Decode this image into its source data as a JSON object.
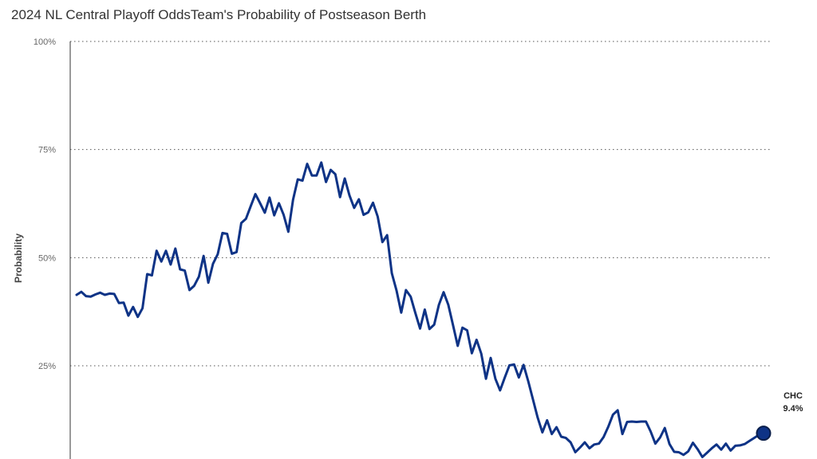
{
  "title": "2024 NL Central Playoff OddsTeam's Probability of Postseason Berth",
  "chart_data": {
    "type": "line",
    "title": "2024 NL Central Playoff OddsTeam's Probability of Postseason Berth",
    "ylabel": "Probability",
    "xlabel": "",
    "ylim": [
      0,
      100
    ],
    "y_ticks": [
      {
        "value": 25,
        "label": "25%"
      },
      {
        "value": 50,
        "label": "50%"
      },
      {
        "value": 75,
        "label": "75%"
      },
      {
        "value": 100,
        "label": "100%"
      }
    ],
    "grid": true,
    "series": [
      {
        "name": "CHC",
        "color": "#0e3386",
        "end_value_label": "9.4%",
        "values": [
          41.4,
          42.1,
          41.1,
          41.0,
          41.5,
          41.9,
          41.4,
          41.7,
          41.6,
          39.5,
          39.6,
          36.6,
          38.6,
          36.3,
          38.3,
          46.2,
          45.9,
          51.6,
          49.1,
          51.6,
          48.4,
          52.1,
          47.3,
          47.0,
          42.5,
          43.5,
          45.6,
          50.4,
          44.2,
          48.6,
          50.8,
          55.7,
          55.5,
          50.9,
          51.3,
          58.0,
          59.0,
          61.9,
          64.7,
          62.6,
          60.4,
          63.9,
          59.8,
          62.6,
          59.9,
          56.0,
          63.4,
          68.1,
          67.8,
          71.7,
          69.0,
          69.0,
          72.0,
          67.5,
          70.3,
          69.3,
          64.0,
          68.3,
          64.4,
          61.5,
          63.5,
          59.9,
          60.5,
          62.7,
          59.5,
          53.6,
          55.2,
          46.4,
          42.4,
          37.3,
          42.5,
          41.0,
          37.2,
          33.6,
          38.0,
          33.5,
          34.5,
          39.1,
          42.0,
          39.1,
          34.4,
          29.6,
          33.8,
          33.2,
          27.9,
          31.0,
          27.8,
          22.0,
          26.8,
          22.0,
          19.3,
          22.3,
          25.1,
          25.3,
          22.3,
          25.2,
          21.4,
          17.2,
          13.0,
          9.6,
          12.4,
          9.2,
          10.8,
          8.6,
          8.3,
          7.3,
          5.0,
          6.1,
          7.3,
          5.9,
          6.8,
          7.0,
          8.5,
          10.9,
          13.7,
          14.7,
          9.2,
          12.0,
          12.1,
          12.0,
          12.1,
          12.1,
          9.8,
          7.0,
          8.4,
          10.6,
          6.9,
          5.1,
          5.0,
          4.4,
          5.2,
          7.2,
          5.7,
          3.9,
          4.9,
          5.9,
          6.8,
          5.6,
          7.0,
          5.4,
          6.5,
          6.6,
          6.9,
          7.6,
          8.3,
          9.0,
          9.4
        ]
      }
    ]
  }
}
